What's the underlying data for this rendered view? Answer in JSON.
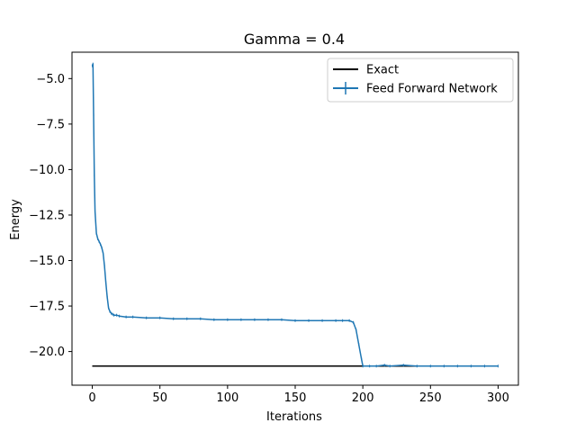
{
  "chart_data": {
    "type": "line",
    "title": "Gamma = 0.4",
    "xlabel": "Iterations",
    "ylabel": "Energy",
    "xlim": [
      -15,
      315
    ],
    "ylim": [
      -21.85,
      -3.55
    ],
    "xticks": [
      0,
      50,
      100,
      150,
      200,
      250,
      300
    ],
    "yticks": [
      -5.0,
      -7.5,
      -10.0,
      -12.5,
      -15.0,
      -17.5,
      -20.0
    ],
    "xtick_labels": [
      "0",
      "50",
      "100",
      "150",
      "200",
      "250",
      "300"
    ],
    "ytick_labels": [
      "−5.0",
      "−7.5",
      "−10.0",
      "−12.5",
      "−15.0",
      "−17.5",
      "−20.0"
    ],
    "legend": {
      "position": "top-right"
    },
    "series": [
      {
        "name": "Exact",
        "color": "#000000",
        "x": [
          0,
          300
        ],
        "y": [
          -20.8,
          -20.8
        ]
      },
      {
        "name": "Feed Forward Network",
        "color": "#1f77b4",
        "error_bars": true,
        "x": [
          0,
          0.5,
          1,
          1.5,
          2,
          3,
          4,
          5,
          6,
          7,
          8,
          9,
          10,
          11,
          12,
          13,
          14,
          15,
          16,
          18,
          20,
          25,
          30,
          40,
          50,
          60,
          70,
          80,
          90,
          100,
          110,
          120,
          130,
          140,
          150,
          160,
          170,
          180,
          185,
          190,
          193,
          195,
          197,
          199,
          200,
          205,
          210,
          216,
          220,
          230,
          240,
          250,
          260,
          270,
          280,
          290,
          300
        ],
        "y": [
          -4.3,
          -4.2,
          -7.0,
          -10.3,
          -12.3,
          -13.5,
          -13.8,
          -13.95,
          -14.1,
          -14.3,
          -14.6,
          -15.3,
          -16.2,
          -17.0,
          -17.6,
          -17.8,
          -17.9,
          -17.95,
          -18.0,
          -18.0,
          -18.05,
          -18.1,
          -18.1,
          -18.15,
          -18.15,
          -18.2,
          -18.2,
          -18.2,
          -18.25,
          -18.25,
          -18.25,
          -18.25,
          -18.25,
          -18.25,
          -18.3,
          -18.3,
          -18.3,
          -18.3,
          -18.3,
          -18.3,
          -18.4,
          -18.8,
          -19.6,
          -20.4,
          -20.8,
          -20.8,
          -20.8,
          -20.75,
          -20.8,
          -20.75,
          -20.8,
          -20.8,
          -20.8,
          -20.8,
          -20.8,
          -20.8,
          -20.8
        ]
      }
    ]
  }
}
